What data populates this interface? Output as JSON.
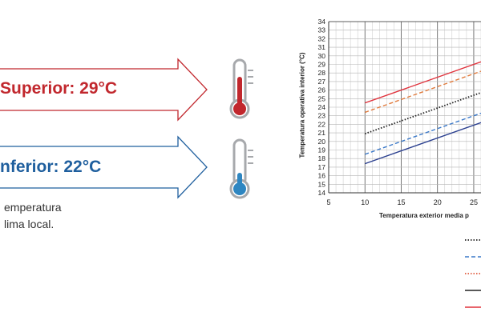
{
  "arrows": {
    "upper": {
      "label": "Superior: 29°C",
      "color": "#c1272d"
    },
    "lower": {
      "label": "nferior: 22°C",
      "color": "#1f5f9e"
    }
  },
  "thermometers": {
    "upper": {
      "icon": "thermometer-hot-icon",
      "fill": "#c1272d"
    },
    "lower": {
      "icon": "thermometer-cold-icon",
      "fill": "#2e86c1"
    }
  },
  "caption": {
    "line1": "emperatura",
    "line2": "lima local."
  },
  "chart_data": {
    "type": "line",
    "ylabel": "Temperatura operativa interior (°C)",
    "xlabel": "Temperatura exterior media p",
    "xlim": [
      5,
      26
    ],
    "ylim": [
      14,
      34
    ],
    "xticks": [
      5,
      10,
      15,
      20,
      25
    ],
    "xtick_labels": [
      "5",
      "10",
      "15",
      "20",
      "25"
    ],
    "yticks": [
      14,
      15,
      16,
      17,
      18,
      19,
      20,
      21,
      22,
      23,
      24,
      25,
      26,
      27,
      28,
      29,
      30,
      31,
      32,
      33,
      34
    ],
    "grid": true,
    "series": [
      {
        "style": "solid",
        "color": "#e0323c",
        "x": [
          10,
          26
        ],
        "y": [
          24.5,
          29.3
        ]
      },
      {
        "style": "dashed",
        "color": "#e07a3c",
        "x": [
          10,
          26
        ],
        "y": [
          23.4,
          28.2
        ]
      },
      {
        "style": "dotted",
        "color": "#222222",
        "x": [
          10,
          26
        ],
        "y": [
          20.9,
          25.7
        ]
      },
      {
        "style": "dashed",
        "color": "#3a78c8",
        "x": [
          10,
          26
        ],
        "y": [
          18.5,
          23.3
        ]
      },
      {
        "style": "solid",
        "color": "#2a3f8f",
        "x": [
          10,
          26
        ],
        "y": [
          17.4,
          22.2
        ]
      }
    ],
    "legend": [
      {
        "style": "dotted",
        "color": "#222222"
      },
      {
        "style": "dashed",
        "color": "#3a78c8"
      },
      {
        "style": "dotted",
        "color": "#e05a3c"
      },
      {
        "style": "solid",
        "color": "#222222"
      },
      {
        "style": "solid",
        "color": "#e0323c"
      }
    ]
  }
}
